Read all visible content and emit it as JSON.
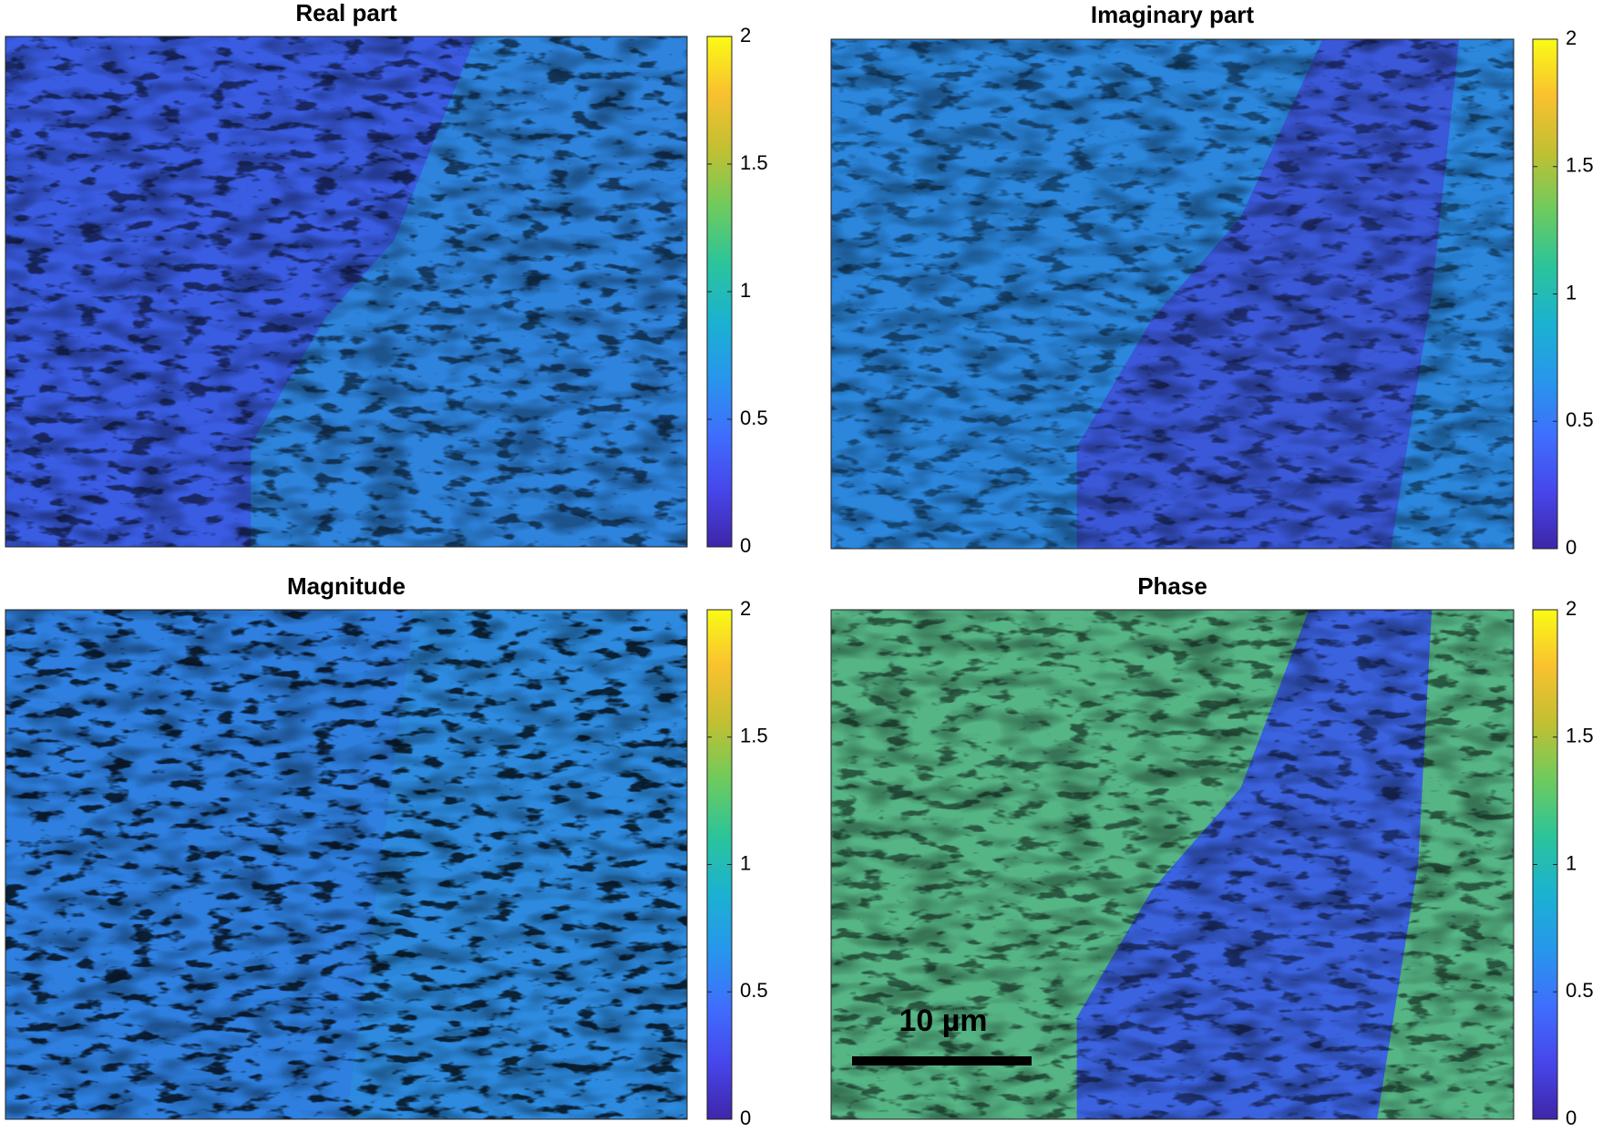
{
  "colormap": [
    "#3e26a8",
    "#4746eb",
    "#3e6ffd",
    "#2797eb",
    "#1bb2d0",
    "#2bc49a",
    "#6ecb5d",
    "#c1c032",
    "#f9c12f",
    "#f9fb15"
  ],
  "panels": [
    {
      "title": "Real part",
      "clim": [
        0,
        2
      ],
      "cticks": [
        0,
        0.5,
        1,
        1.5,
        2
      ]
    },
    {
      "title": "Imaginary part",
      "clim": [
        0,
        2
      ],
      "cticks": [
        0,
        0.5,
        1,
        1.5,
        2
      ]
    },
    {
      "title": "Magnitude",
      "clim": [
        0,
        2
      ],
      "cticks": [
        0,
        0.5,
        1,
        1.5,
        2
      ]
    },
    {
      "title": "Phase",
      "clim": [
        0,
        2
      ],
      "cticks": [
        0,
        0.5,
        1,
        1.5,
        2
      ]
    }
  ],
  "scale_bar": {
    "label": "10 µm"
  }
}
